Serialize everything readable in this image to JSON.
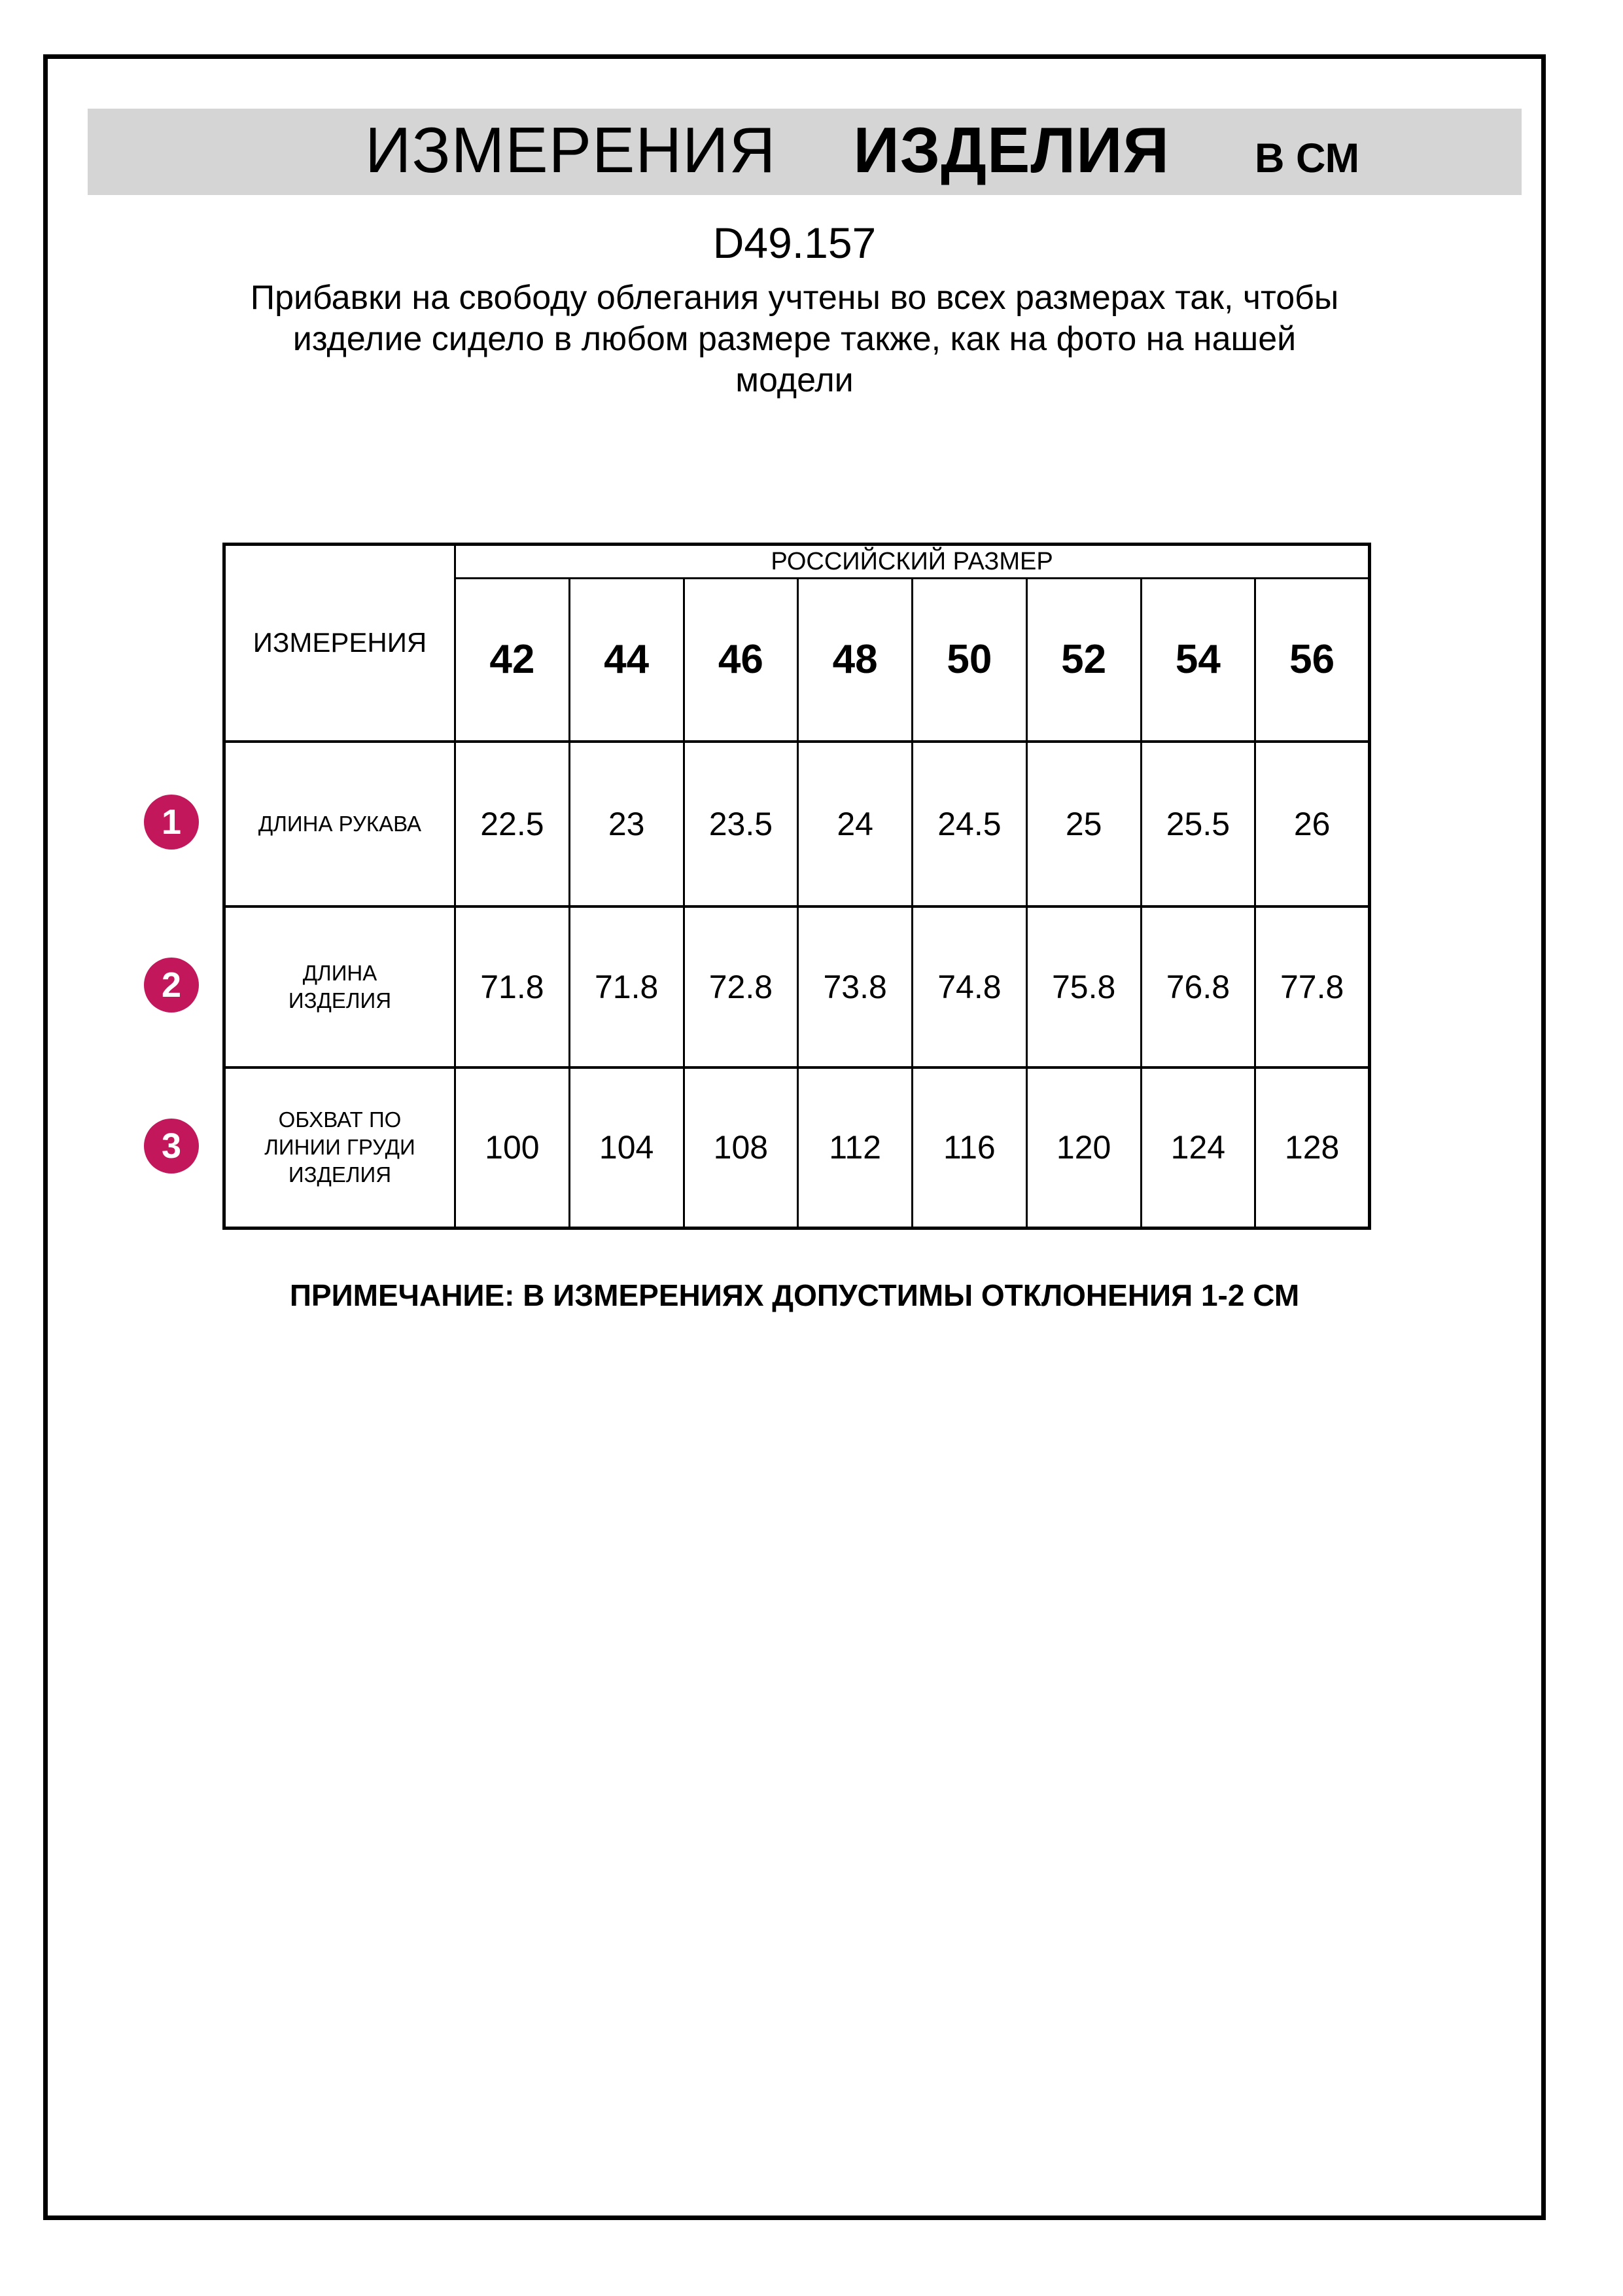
{
  "header": {
    "title_measurements": "ИЗМЕРЕНИЯ",
    "title_product": "ИЗДЕЛИЯ",
    "title_units": "В СМ"
  },
  "product": {
    "code": "D49.157",
    "description": "Прибавки на свободу облегания учтены во всех размерах так, чтобы\nизделие сидело в любом размере также, как на фото на нашей\nмодели"
  },
  "table": {
    "measurements_header": "ИЗМЕРЕНИЯ",
    "size_group_header": "РОССИЙСКИЙ РАЗМЕР",
    "sizes": [
      "42",
      "44",
      "46",
      "48",
      "50",
      "52",
      "54",
      "56"
    ],
    "rows": [
      {
        "num": "1",
        "label": "ДЛИНА РУКАВА",
        "values": [
          "22.5",
          "23",
          "23.5",
          "24",
          "24.5",
          "25",
          "25.5",
          "26"
        ]
      },
      {
        "num": "2",
        "label": "ДЛИНА\nИЗДЕЛИЯ",
        "values": [
          "71.8",
          "71.8",
          "72.8",
          "73.8",
          "74.8",
          "75.8",
          "76.8",
          "77.8"
        ]
      },
      {
        "num": "3",
        "label": "ОБХВАТ ПО\nЛИНИИ ГРУДИ\nИЗДЕЛИЯ",
        "values": [
          "100",
          "104",
          "108",
          "112",
          "116",
          "120",
          "124",
          "128"
        ]
      }
    ]
  },
  "note": {
    "text": "ПРИМЕЧАНИЕ: В ИЗМЕРЕНИЯХ ДОПУСТИМЫ ОТКЛОНЕНИЯ 1-2 СМ"
  },
  "colors": {
    "badge_background": "#c2175b",
    "banner_background": "#d5d5d5",
    "text": "#000000"
  }
}
